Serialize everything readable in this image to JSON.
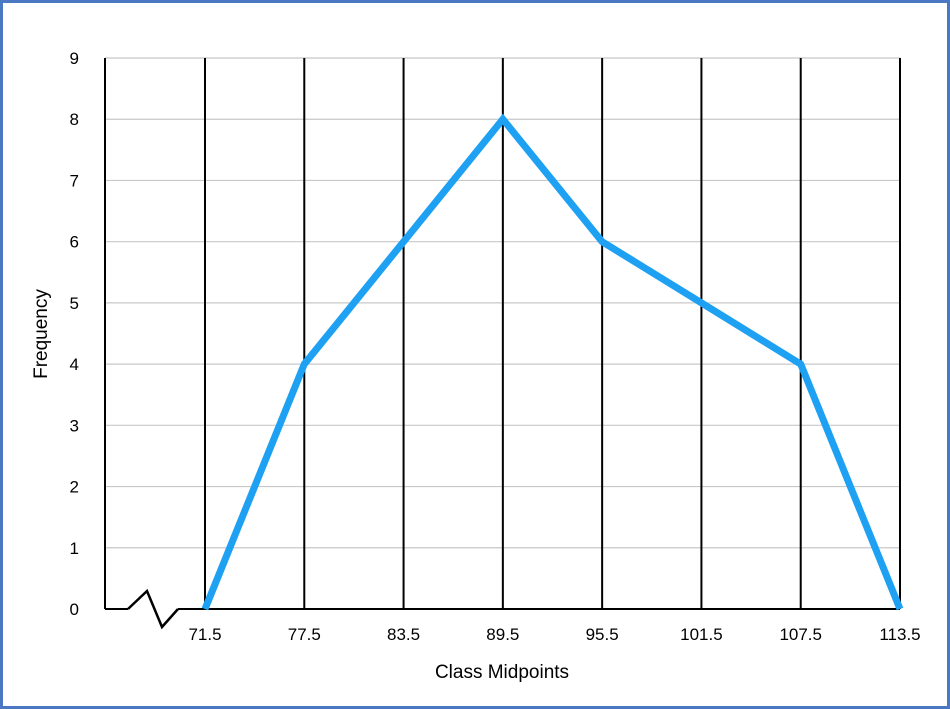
{
  "chart_data": {
    "type": "line",
    "title": "",
    "xlabel": "Class Midpoints",
    "ylabel": "Frequency",
    "x": [
      71.5,
      77.5,
      83.5,
      89.5,
      95.5,
      101.5,
      107.5,
      113.5
    ],
    "x_tick_labels": [
      "71.5",
      "77.5",
      "83.5",
      "89.5",
      "95.5",
      "101.5",
      "107.5",
      "113.5"
    ],
    "series": [
      {
        "values": [
          0,
          4,
          6,
          8,
          6,
          5,
          4,
          0
        ],
        "color": "#1ea1f2"
      }
    ],
    "ylim": [
      0,
      9
    ],
    "y_ticks": [
      0,
      1,
      2,
      3,
      4,
      5,
      6,
      7,
      8,
      9
    ],
    "grid": true,
    "axis_break": true
  }
}
